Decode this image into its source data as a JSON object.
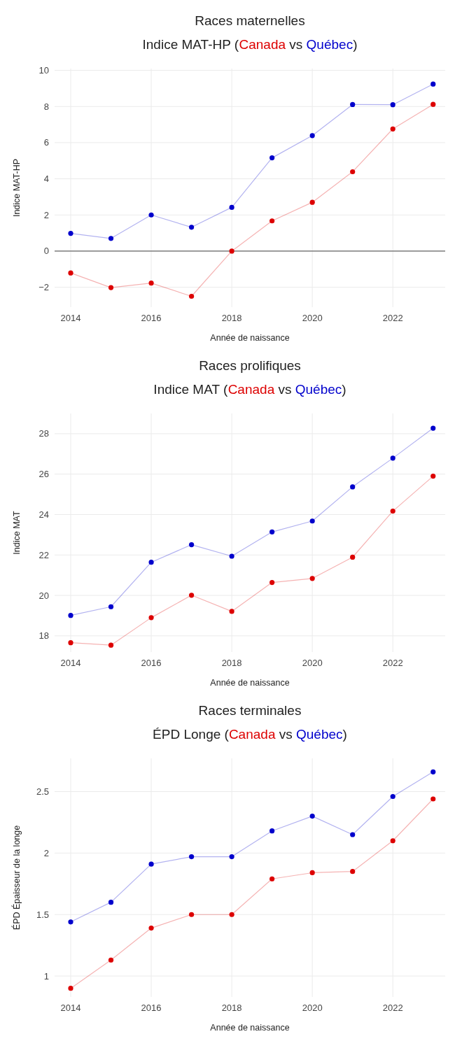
{
  "chart_data": [
    {
      "type": "line",
      "title": "Races maternelles",
      "subtitle": "Indice MAT-HP (Canada vs Québec)",
      "xlabel": "Année de naissance",
      "ylabel": "Indice MAT-HP",
      "x": [
        2014,
        2015,
        2016,
        2017,
        2018,
        2019,
        2020,
        2021,
        2022,
        2023
      ],
      "xlim": [
        2013.6,
        2023.3
      ],
      "xticks": [
        2014,
        2016,
        2018,
        2020,
        2022
      ],
      "ylim": [
        -3.1,
        10.1
      ],
      "yticks": [
        {
          "value": -2,
          "label": "−2"
        },
        0,
        2,
        4,
        6,
        8,
        10
      ],
      "grid": true,
      "legend": false,
      "marker": "circle",
      "line_style": "solid",
      "ref_lines": [
        {
          "axis": "y",
          "value": 0,
          "color": "#444444"
        }
      ],
      "series": [
        {
          "color": "#dd0000",
          "values": [
            -1.21,
            -2.02,
            -1.77,
            -2.5,
            0,
            1.67,
            2.7,
            4.39,
            6.76,
            8.12
          ]
        },
        {
          "color": "#0000cc",
          "values": [
            0.98,
            0.7,
            2.0,
            1.32,
            2.42,
            5.16,
            6.39,
            8.11,
            8.1,
            9.24
          ]
        }
      ]
    },
    {
      "type": "line",
      "title": "Races prolifiques",
      "subtitle": "Indice MAT (Canada vs Québec)",
      "xlabel": "Année de naissance",
      "ylabel": "Indice MAT",
      "x": [
        2014,
        2015,
        2016,
        2017,
        2018,
        2019,
        2020,
        2021,
        2022,
        2023
      ],
      "xlim": [
        2013.6,
        2023.3
      ],
      "xticks": [
        2014,
        2016,
        2018,
        2020,
        2022
      ],
      "ylim": [
        17.2,
        29
      ],
      "yticks": [
        18,
        20,
        22,
        24,
        26,
        28
      ],
      "grid": true,
      "legend": false,
      "marker": "circle",
      "line_style": "solid",
      "series": [
        {
          "color": "#dd0000",
          "values": [
            17.66,
            17.54,
            18.9,
            20.01,
            19.21,
            20.64,
            20.84,
            21.89,
            24.17,
            25.9
          ]
        },
        {
          "color": "#0000cc",
          "values": [
            19.01,
            19.44,
            21.64,
            22.51,
            21.94,
            23.14,
            23.68,
            25.37,
            26.79,
            28.27
          ]
        }
      ]
    },
    {
      "type": "line",
      "title": "Races terminales",
      "subtitle": "ÉPD Longe (Canada vs Québec)",
      "xlabel": "Année de naissance",
      "ylabel": "ÉPD Épaisseur de la longe",
      "x": [
        2014,
        2015,
        2016,
        2017,
        2018,
        2019,
        2020,
        2021,
        2022,
        2023
      ],
      "xlim": [
        2013.6,
        2023.3
      ],
      "xticks": [
        2014,
        2016,
        2018,
        2020,
        2022
      ],
      "ylim": [
        0.83,
        2.77
      ],
      "yticks": [
        1,
        1.5,
        2,
        2.5
      ],
      "grid": true,
      "legend": false,
      "marker": "circle",
      "line_style": "solid",
      "series": [
        {
          "color": "#dd0000",
          "values": [
            0.9,
            1.13,
            1.39,
            1.5,
            1.5,
            1.79,
            1.84,
            1.85,
            2.1,
            2.44
          ]
        },
        {
          "color": "#0000cc",
          "values": [
            1.44,
            1.6,
            1.91,
            1.97,
            1.97,
            2.18,
            2.3,
            2.15,
            2.46,
            2.66
          ]
        }
      ]
    }
  ]
}
